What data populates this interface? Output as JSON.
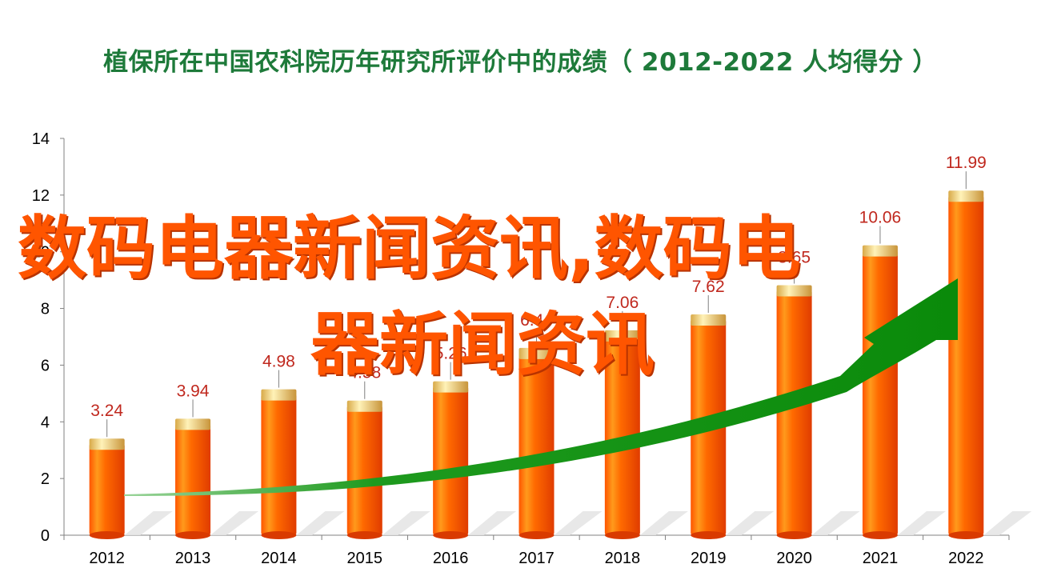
{
  "chart_data": {
    "type": "bar",
    "title": "植保所在中国农科院历年研究所评价中的成绩（ 2012-2022  人均得分 ）",
    "categories": [
      "2012",
      "2013",
      "2014",
      "2015",
      "2016",
      "2017",
      "2018",
      "2019",
      "2020",
      "2021",
      "2022"
    ],
    "values": [
      3.24,
      3.94,
      4.98,
      4.58,
      5.26,
      6.44,
      7.06,
      7.62,
      8.65,
      10.06,
      11.99
    ],
    "value_labels": [
      "3.24",
      "3.94",
      "4.98",
      "4.58",
      "5.26",
      "6.44",
      "7.06",
      "7.62",
      "8.65",
      "10.06",
      "11.99"
    ],
    "ylim": [
      0,
      14
    ],
    "yticks": [
      0,
      2,
      4,
      6,
      8,
      10,
      12,
      14
    ],
    "xlabel": "",
    "ylabel": "",
    "grid": false,
    "legend": "none",
    "trend_arrow": "rising green arrow",
    "colors": {
      "bar": "#ff5a00",
      "bar_top": "#e8c060",
      "arrow": "#1a9a1a",
      "label": "#c0281e"
    }
  },
  "overlay": {
    "line1": "数码电器新闻资讯,数码电",
    "line2": "器新闻资讯"
  }
}
